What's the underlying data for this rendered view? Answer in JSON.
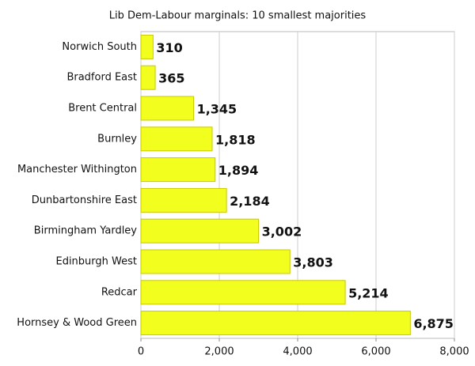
{
  "chart_data": {
    "type": "hbar",
    "title": "Lib Dem-Labour marginals: 10 smallest majorities",
    "categories": [
      "Norwich South",
      "Bradford East",
      "Brent Central",
      "Burnley",
      "Manchester Withington",
      "Dunbartonshire East",
      "Birmingham Yardley",
      "Edinburgh West",
      "Redcar",
      "Hornsey & Wood Green"
    ],
    "values": [
      310,
      365,
      1345,
      1818,
      1894,
      2184,
      3002,
      3803,
      5214,
      6875
    ],
    "value_labels": [
      "310",
      "365",
      "1,345",
      "1,818",
      "1,894",
      "2,184",
      "3,002",
      "3,803",
      "5,214",
      "6,875"
    ],
    "color": "#f2ff1e",
    "xlim": [
      0,
      8000
    ],
    "xticks": [
      0,
      {
        "value": 2000,
        "label": "2,000"
      },
      {
        "value": 4000,
        "label": "4,000"
      },
      {
        "value": 6000,
        "label": "6,000"
      },
      {
        "value": 8000,
        "label": "8,000"
      }
    ],
    "grid": true
  }
}
